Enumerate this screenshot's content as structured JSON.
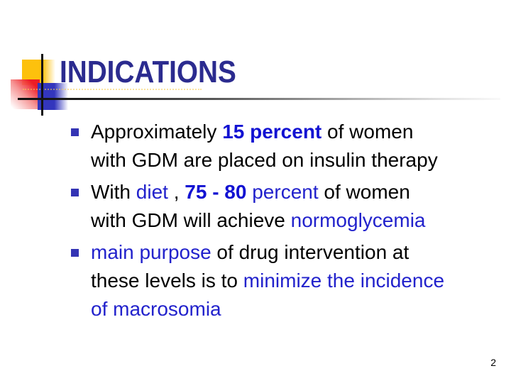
{
  "slide": {
    "title": "INDICATIONS",
    "page_number": "2",
    "colors": {
      "title": "#2b2b8f",
      "body": "#000000",
      "accent_blue": "#2222cc",
      "accent_blue_bold": "#1212d2",
      "bullet": "#3434b4",
      "decor_yellow": "#fdc10d",
      "decor_red": "#ee1c25",
      "decor_blue": "#3336bd"
    },
    "bullets": [
      {
        "lines": [
          [
            {
              "text": "Approximately ",
              "style": "black"
            },
            {
              "text": "15 percent",
              "style": "blue-bold"
            },
            {
              "text": " of women",
              "style": "black"
            }
          ],
          [
            {
              "text": "with GDM are placed on insulin therapy",
              "style": "black"
            }
          ]
        ]
      },
      {
        "lines": [
          [
            {
              "text": "With ",
              "style": "black"
            },
            {
              "text": "diet",
              "style": "blue"
            },
            {
              "text": " , ",
              "style": "black"
            },
            {
              "text": "75 - 80",
              "style": "blue-bold"
            },
            {
              "text": " ",
              "style": "black"
            },
            {
              "text": "percent",
              "style": "blue"
            },
            {
              "text": " of women",
              "style": "black"
            }
          ],
          [
            {
              "text": "with GDM will achieve ",
              "style": "black"
            },
            {
              "text": "normoglycemia",
              "style": "blue"
            }
          ]
        ]
      },
      {
        "lines": [
          [
            {
              "text": "main purpose",
              "style": "blue"
            },
            {
              "text": " of drug intervention at",
              "style": "black"
            }
          ],
          [
            {
              "text": "these levels is to ",
              "style": "black"
            },
            {
              "text": "minimize the incidence",
              "style": "blue"
            }
          ],
          [
            {
              "text": "of macrosomia",
              "style": "blue"
            }
          ]
        ]
      }
    ]
  }
}
